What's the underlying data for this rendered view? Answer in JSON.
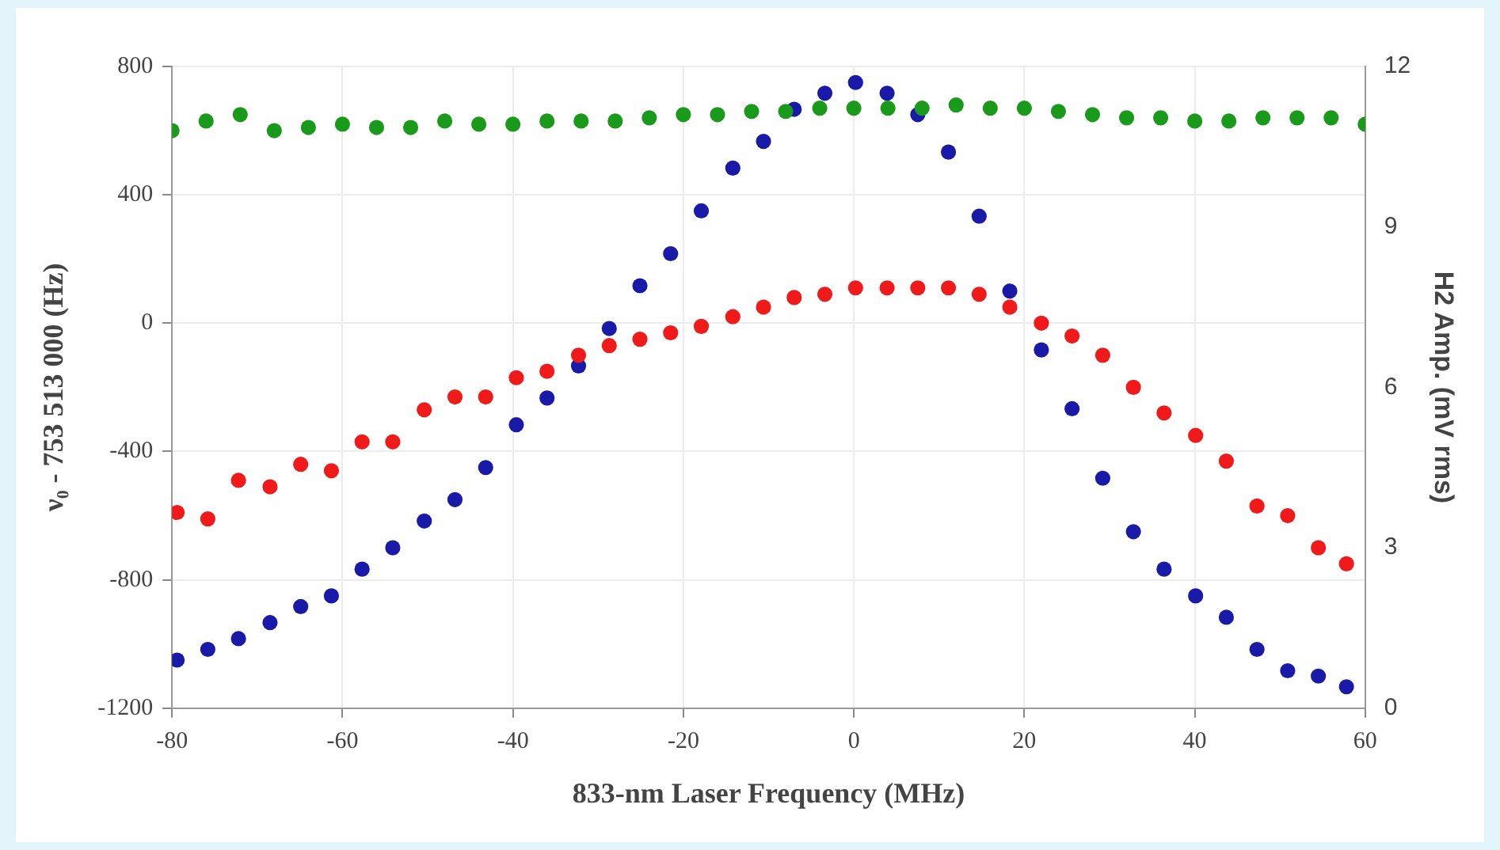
{
  "chart_data": {
    "type": "scatter",
    "xlabel": "833-nm Laser Frequency (MHz)",
    "ylabel": "ν₀ - 753 513 000 (Hz)",
    "y2label": "H2 Amp. (mV rms)",
    "xlim": [
      -80,
      60
    ],
    "xticks": [
      -80,
      -60,
      -40,
      -20,
      0,
      20,
      40,
      60
    ],
    "ylim": [
      -1200,
      800
    ],
    "yticks": [
      -1200,
      -800,
      -400,
      0,
      400,
      800
    ],
    "y2lim": [
      0,
      12
    ],
    "y2ticks": [
      0,
      3,
      6,
      9,
      12
    ],
    "grid": true,
    "marker": "circle",
    "legend": false,
    "series": [
      {
        "color": "#1a9a1a",
        "x": [
          -80,
          -76,
          -72,
          -68,
          -64,
          -60,
          -56,
          -52,
          -48,
          -44,
          -40,
          -36,
          -32,
          -28,
          -24,
          -20,
          -16,
          -12,
          -8,
          -4,
          0,
          4,
          8,
          12,
          16,
          20,
          24,
          28,
          32,
          36,
          40,
          44,
          48,
          52,
          56,
          60
        ],
        "values": [
          600,
          630,
          650,
          600,
          610,
          620,
          610,
          610,
          630,
          620,
          620,
          630,
          630,
          630,
          640,
          650,
          650,
          660,
          660,
          670,
          670,
          670,
          670,
          680,
          670,
          670,
          660,
          650,
          640,
          640,
          630,
          630,
          640,
          640,
          640,
          620
        ]
      },
      {
        "color": "#f01a1a",
        "x": [
          -79.4,
          -75.8,
          -72.2,
          -68.5,
          -64.9,
          -61.3,
          -57.7,
          -54.1,
          -50.4,
          -46.8,
          -43.2,
          -39.6,
          -36.0,
          -32.3,
          -28.7,
          -25.1,
          -21.5,
          -17.9,
          -14.2,
          -10.6,
          -7.0,
          -3.4,
          0.2,
          3.9,
          7.5,
          11.1,
          14.7,
          18.3,
          22.0,
          25.6,
          29.2,
          32.8,
          36.4,
          40.1,
          43.7,
          47.3,
          50.9,
          54.5,
          57.8
        ],
        "values": [
          -590,
          -610,
          -490,
          -510,
          -440,
          -460,
          -370,
          -370,
          -270,
          -230,
          -230,
          -170,
          -150,
          -100,
          -70,
          -50,
          -30,
          -10,
          20,
          50,
          80,
          90,
          110,
          110,
          110,
          110,
          90,
          50,
          0,
          -40,
          -100,
          -200,
          -280,
          -350,
          -430,
          -570,
          -600,
          -700,
          -750
        ]
      },
      {
        "color": "#1a1aa8",
        "axis": "y2",
        "x": [
          -79.4,
          -75.8,
          -72.2,
          -68.5,
          -64.9,
          -61.3,
          -57.7,
          -54.1,
          -50.4,
          -46.8,
          -43.2,
          -39.6,
          -36.0,
          -32.3,
          -28.7,
          -25.1,
          -21.5,
          -17.9,
          -14.2,
          -10.6,
          -7.0,
          -3.4,
          0.2,
          3.9,
          7.5,
          11.1,
          14.7,
          18.3,
          22.0,
          25.6,
          29.2,
          32.8,
          36.4,
          40.1,
          43.7,
          47.3,
          50.9,
          54.5,
          57.8
        ],
        "values": [
          0.9,
          1.1,
          1.3,
          1.6,
          1.9,
          2.1,
          2.6,
          3.0,
          3.5,
          3.9,
          4.5,
          5.3,
          5.8,
          6.4,
          7.1,
          7.9,
          8.5,
          9.3,
          10.1,
          10.6,
          11.2,
          11.5,
          11.7,
          11.5,
          11.1,
          10.4,
          9.2,
          7.8,
          6.7,
          5.6,
          4.3,
          3.3,
          2.6,
          2.1,
          1.7,
          1.1,
          0.7,
          0.6,
          0.4
        ]
      }
    ]
  }
}
